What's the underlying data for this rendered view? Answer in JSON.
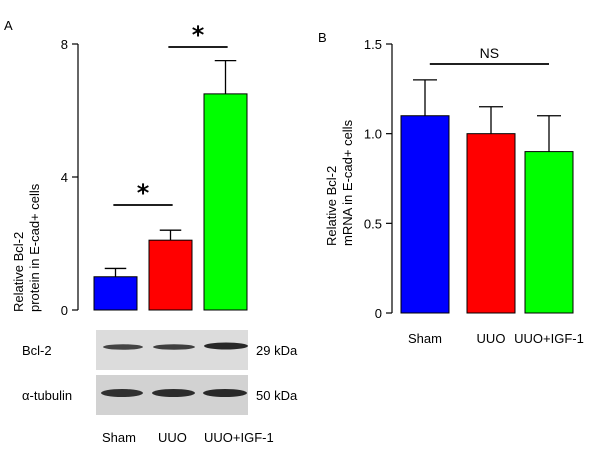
{
  "chart_data": [
    {
      "type": "bar",
      "panel_label": "A",
      "ylabel_lines": [
        "Relative Bcl-2",
        "protein in E-cad+ cells"
      ],
      "ylim": [
        0,
        8
      ],
      "yticks": [
        0,
        4,
        8
      ],
      "categories": [
        "Sham",
        "UUO",
        "UUO+IGF-1"
      ],
      "values": [
        1.0,
        2.1,
        6.5
      ],
      "errors": [
        0.25,
        0.3,
        1.0
      ],
      "colors": [
        "#0000ff",
        "#ff0000",
        "#00ff00"
      ],
      "significance": [
        {
          "from": 0,
          "to": 1,
          "label": "*"
        },
        {
          "from": 1,
          "to": 2,
          "label": "*"
        }
      ],
      "blot": {
        "rows": [
          {
            "label": "Bcl-2",
            "size": "29 kDa"
          },
          {
            "label": "α-tubulin",
            "size": "50 kDa"
          }
        ],
        "lane_labels": [
          "Sham",
          "UUO",
          "UUO+IGF-1"
        ]
      }
    },
    {
      "type": "bar",
      "panel_label": "B",
      "ylabel_lines": [
        "Relative Bcl-2",
        "mRNA in E-cad+ cells"
      ],
      "ylim": [
        0,
        1.5
      ],
      "yticks": [
        0,
        0.5,
        1.0,
        1.5
      ],
      "ytick_labels": [
        "0",
        "0.5",
        "1.0",
        "1.5"
      ],
      "categories": [
        "Sham",
        "UUO",
        "UUO+IGF-1"
      ],
      "values": [
        1.1,
        1.0,
        0.9
      ],
      "errors": [
        0.2,
        0.15,
        0.2
      ],
      "colors": [
        "#0000ff",
        "#ff0000",
        "#00ff00"
      ],
      "significance": [
        {
          "from": 0,
          "to": 2,
          "label": "NS"
        }
      ]
    }
  ]
}
